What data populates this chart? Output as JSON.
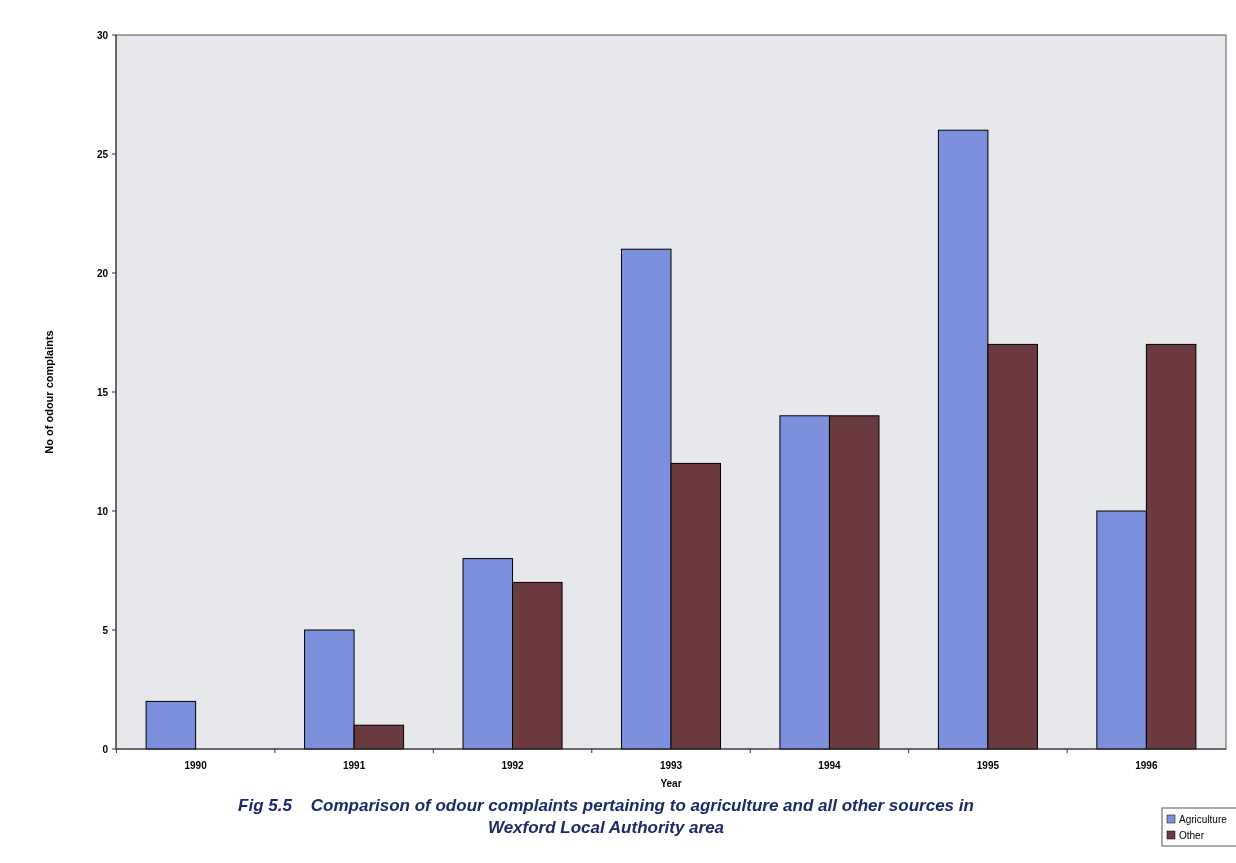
{
  "chart_data": {
    "type": "bar",
    "title": "Fig 5.5    Comparison of odour complaints pertaining to agriculture and all other sources in Wexford Local Authority area",
    "xlabel": "Year",
    "ylabel": "No of odour complaints",
    "categories": [
      "1990",
      "1991",
      "1992",
      "1993",
      "1994",
      "1995",
      "1996"
    ],
    "series": [
      {
        "name": "Agriculture",
        "color": "#7b8fdc",
        "values": [
          2,
          5,
          8,
          21,
          14,
          26,
          10
        ]
      },
      {
        "name": "Other",
        "color": "#6b3a3e",
        "values": [
          0,
          1,
          7,
          12,
          14,
          17,
          17
        ]
      }
    ],
    "ylim": [
      0,
      30
    ],
    "yticks": [
      0,
      5,
      10,
      15,
      20,
      25,
      30
    ],
    "grid": false,
    "legend": "bottom right"
  }
}
